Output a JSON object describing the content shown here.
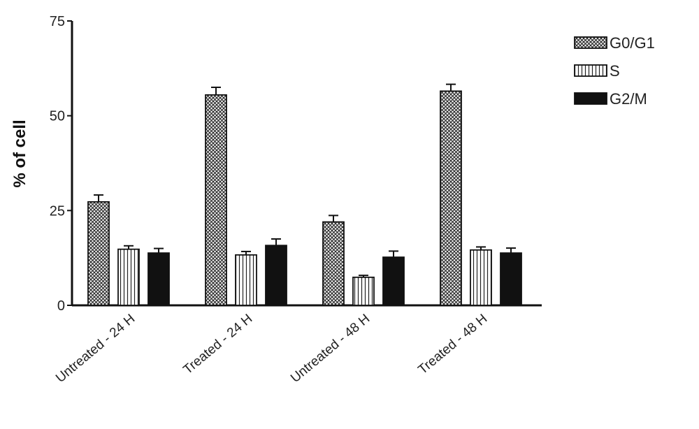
{
  "chart_data": {
    "type": "bar",
    "title": "",
    "xlabel": "",
    "ylabel": "% of cell",
    "ylim": [
      0,
      75
    ],
    "yticks": [
      0,
      25,
      50,
      75
    ],
    "categories": [
      "Untreated - 24 H",
      "Treated - 24 H",
      "Untreated - 48 H",
      "Treated - 48 H"
    ],
    "series": [
      {
        "name": "G0/G1",
        "pattern": "crosshatch",
        "color": "#333333",
        "values": [
          27.3,
          55.5,
          22.0,
          56.5
        ],
        "errors": [
          1.8,
          2.0,
          1.7,
          1.8
        ]
      },
      {
        "name": "S",
        "pattern": "vertical-stripes",
        "color": "#ffffff",
        "values": [
          14.8,
          13.3,
          7.4,
          14.6
        ],
        "errors": [
          0.9,
          0.9,
          0.5,
          0.8
        ]
      },
      {
        "name": "G2/M",
        "pattern": "solid",
        "color": "#111111",
        "values": [
          13.8,
          15.8,
          12.7,
          13.8
        ],
        "errors": [
          1.2,
          1.7,
          1.6,
          1.3
        ]
      }
    ],
    "grid": false,
    "legend": "top-right"
  }
}
